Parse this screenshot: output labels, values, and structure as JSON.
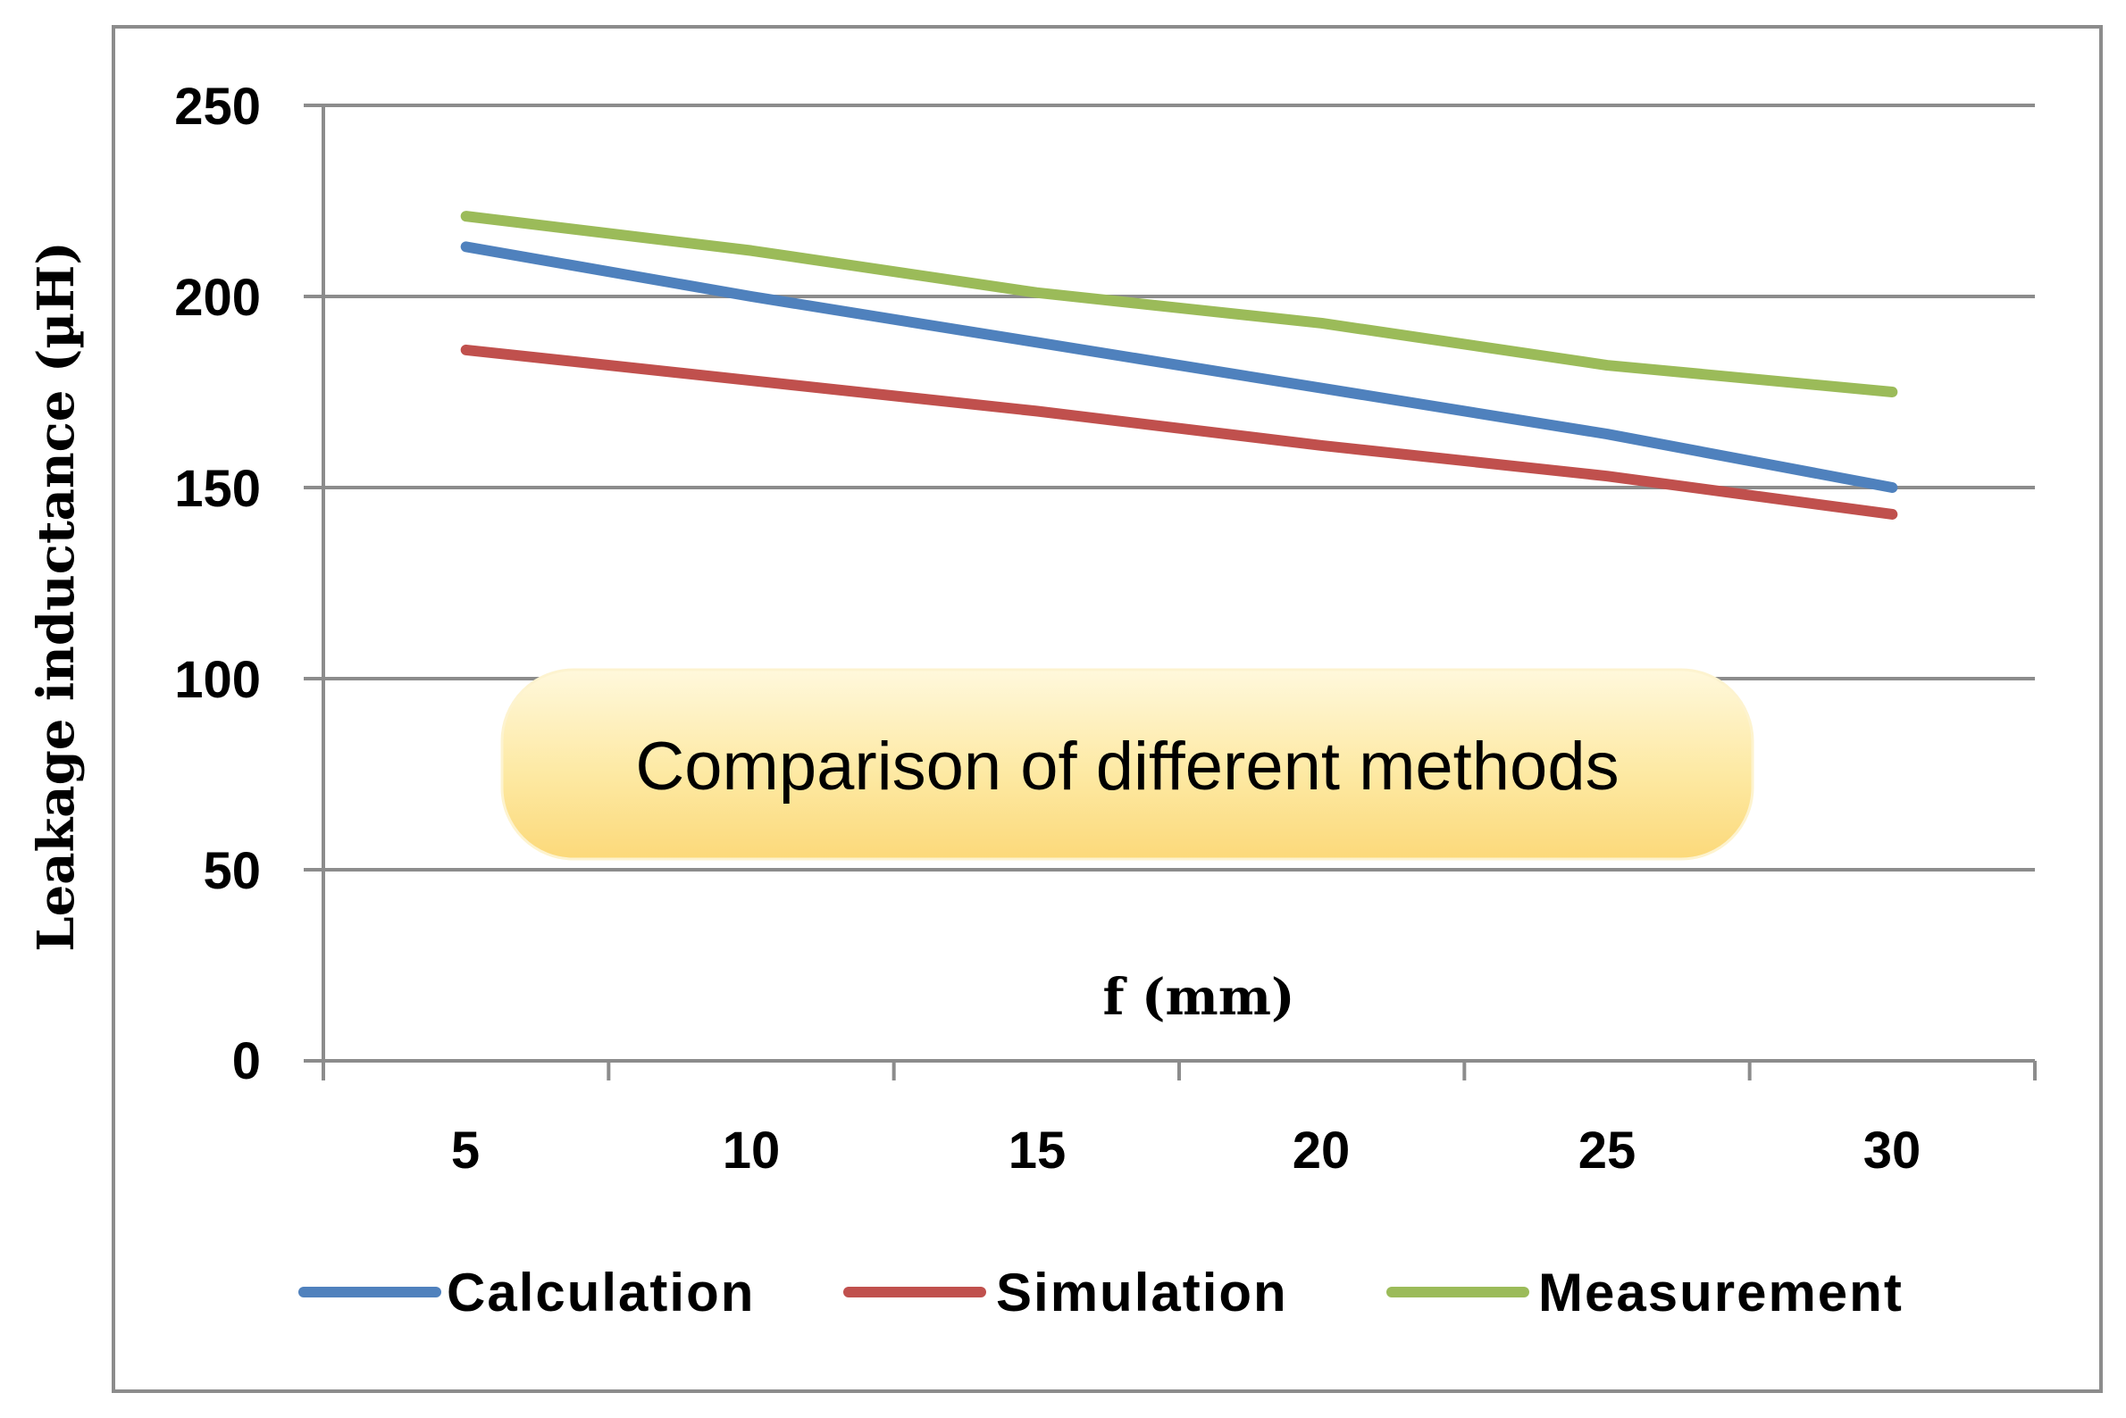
{
  "chart_data": {
    "type": "line",
    "title": "Comparison of different methods",
    "xlabel": "f (mm)",
    "ylabel": "Leakage inductance  (µH)",
    "categories": [
      "5",
      "10",
      "15",
      "20",
      "25",
      "30"
    ],
    "x_ticks": [
      "5",
      "10",
      "15",
      "20",
      "25",
      "30"
    ],
    "y_ticks": [
      "0",
      "50",
      "100",
      "150",
      "200",
      "250"
    ],
    "ylim": [
      0,
      250
    ],
    "grid": true,
    "legend_position": "bottom",
    "series": [
      {
        "name": "Calculation",
        "color": "#4f81bd",
        "values": [
          213,
          200,
          188,
          176,
          164,
          150
        ]
      },
      {
        "name": "Simulation",
        "color": "#c0504d",
        "values": [
          186,
          178,
          170,
          161,
          153,
          143
        ]
      },
      {
        "name": "Measurement",
        "color": "#9bbb59",
        "values": [
          221,
          212,
          201,
          193,
          182,
          175
        ]
      }
    ]
  }
}
